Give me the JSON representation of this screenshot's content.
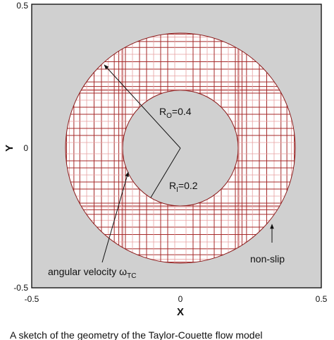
{
  "x_axis": {
    "label": "X",
    "ticks": [
      "-0.5",
      "0",
      "0.5"
    ]
  },
  "y_axis": {
    "label": "Y",
    "ticks": [
      "0.5",
      "0",
      "-0.5"
    ]
  },
  "annotations": {
    "outer_radius": {
      "symbol": "R",
      "subscript": "O",
      "value": "=0.4"
    },
    "inner_radius": {
      "symbol": "R",
      "subscript": "I",
      "value": "=0.2"
    },
    "angular_velocity": {
      "text": "angular velocity ω",
      "subscript": "TC"
    },
    "boundary": "non-slip"
  },
  "caption": "A sketch of the geometry of the Taylor-Couette flow model"
}
